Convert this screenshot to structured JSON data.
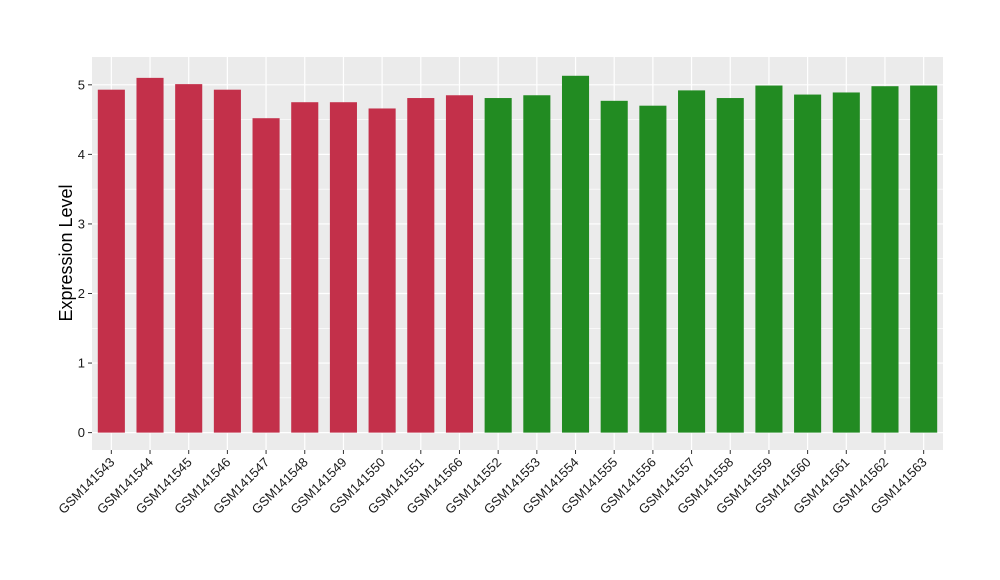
{
  "chart_data": {
    "type": "bar",
    "title": "",
    "xlabel": "",
    "ylabel": "Expression Level",
    "ylim": [
      -0.25,
      5.4
    ],
    "yticks": [
      0,
      1,
      2,
      3,
      4,
      5
    ],
    "grid": true,
    "legend": "none",
    "categories": [
      "GSM141543",
      "GSM141544",
      "GSM141545",
      "GSM141546",
      "GSM141547",
      "GSM141548",
      "GSM141549",
      "GSM141550",
      "GSM141551",
      "GSM141566",
      "GSM141552",
      "GSM141553",
      "GSM141554",
      "GSM141555",
      "GSM141556",
      "GSM141557",
      "GSM141558",
      "GSM141559",
      "GSM141560",
      "GSM141561",
      "GSM141562",
      "GSM141563"
    ],
    "values": [
      4.93,
      5.1,
      5.01,
      4.93,
      4.52,
      4.75,
      4.75,
      4.66,
      4.81,
      4.85,
      4.81,
      4.85,
      5.13,
      4.77,
      4.7,
      4.92,
      4.81,
      4.99,
      4.86,
      4.89,
      4.98,
      4.99
    ],
    "bar_colors": [
      "#C3304A",
      "#C3304A",
      "#C3304A",
      "#C3304A",
      "#C3304A",
      "#C3304A",
      "#C3304A",
      "#C3304A",
      "#C3304A",
      "#C3304A",
      "#228B22",
      "#228B22",
      "#228B22",
      "#228B22",
      "#228B22",
      "#228B22",
      "#228B22",
      "#228B22",
      "#228B22",
      "#228B22",
      "#228B22",
      "#228B22"
    ],
    "panel_background": "#EBEBEB",
    "grid_color": "#FFFFFF"
  }
}
